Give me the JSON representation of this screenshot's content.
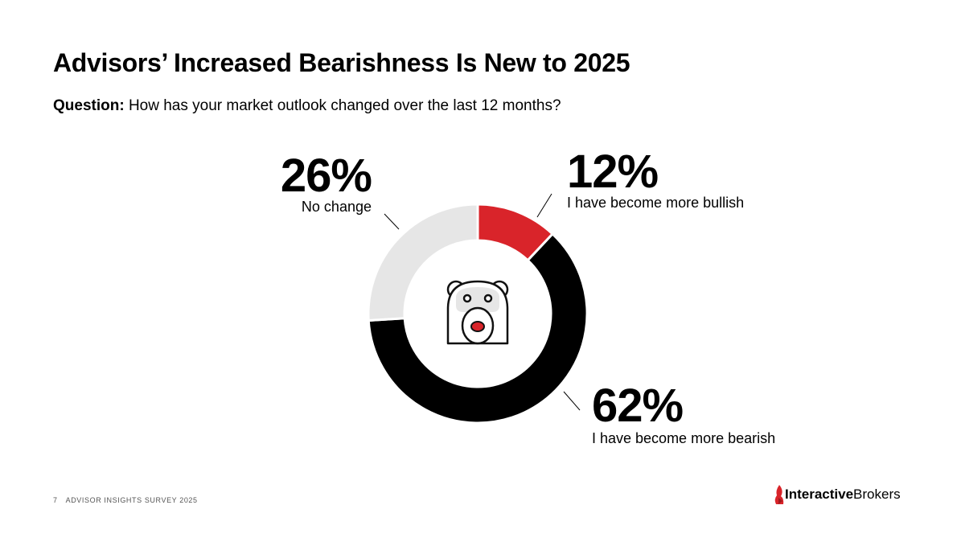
{
  "page": {
    "title": "Advisors’ Increased Bearishness Is New to 2025",
    "question_label": "Question:",
    "question_text": "How has your market outlook changed over the last 12 months?"
  },
  "chart_data": {
    "type": "pie",
    "variant": "donut",
    "title": "Advisors’ Increased Bearishness Is New to 2025",
    "categories": [
      "I have become more bullish",
      "I have become more bearish",
      "No change"
    ],
    "values": [
      12,
      62,
      26
    ],
    "labels": [
      "12%",
      "62%",
      "26%"
    ],
    "colors": [
      "#d9242a",
      "#000000",
      "#e6e6e6"
    ],
    "start_angle_deg": 0,
    "direction": "clockwise",
    "center_icon": "bear-face-icon",
    "legend": "none"
  },
  "footer": {
    "page_number": "7",
    "survey_name": "ADVISOR INSIGHTS SURVEY 2025"
  },
  "logo": {
    "bold": "Interactive",
    "light": "Brokers",
    "accent_color": "#d9242a"
  }
}
